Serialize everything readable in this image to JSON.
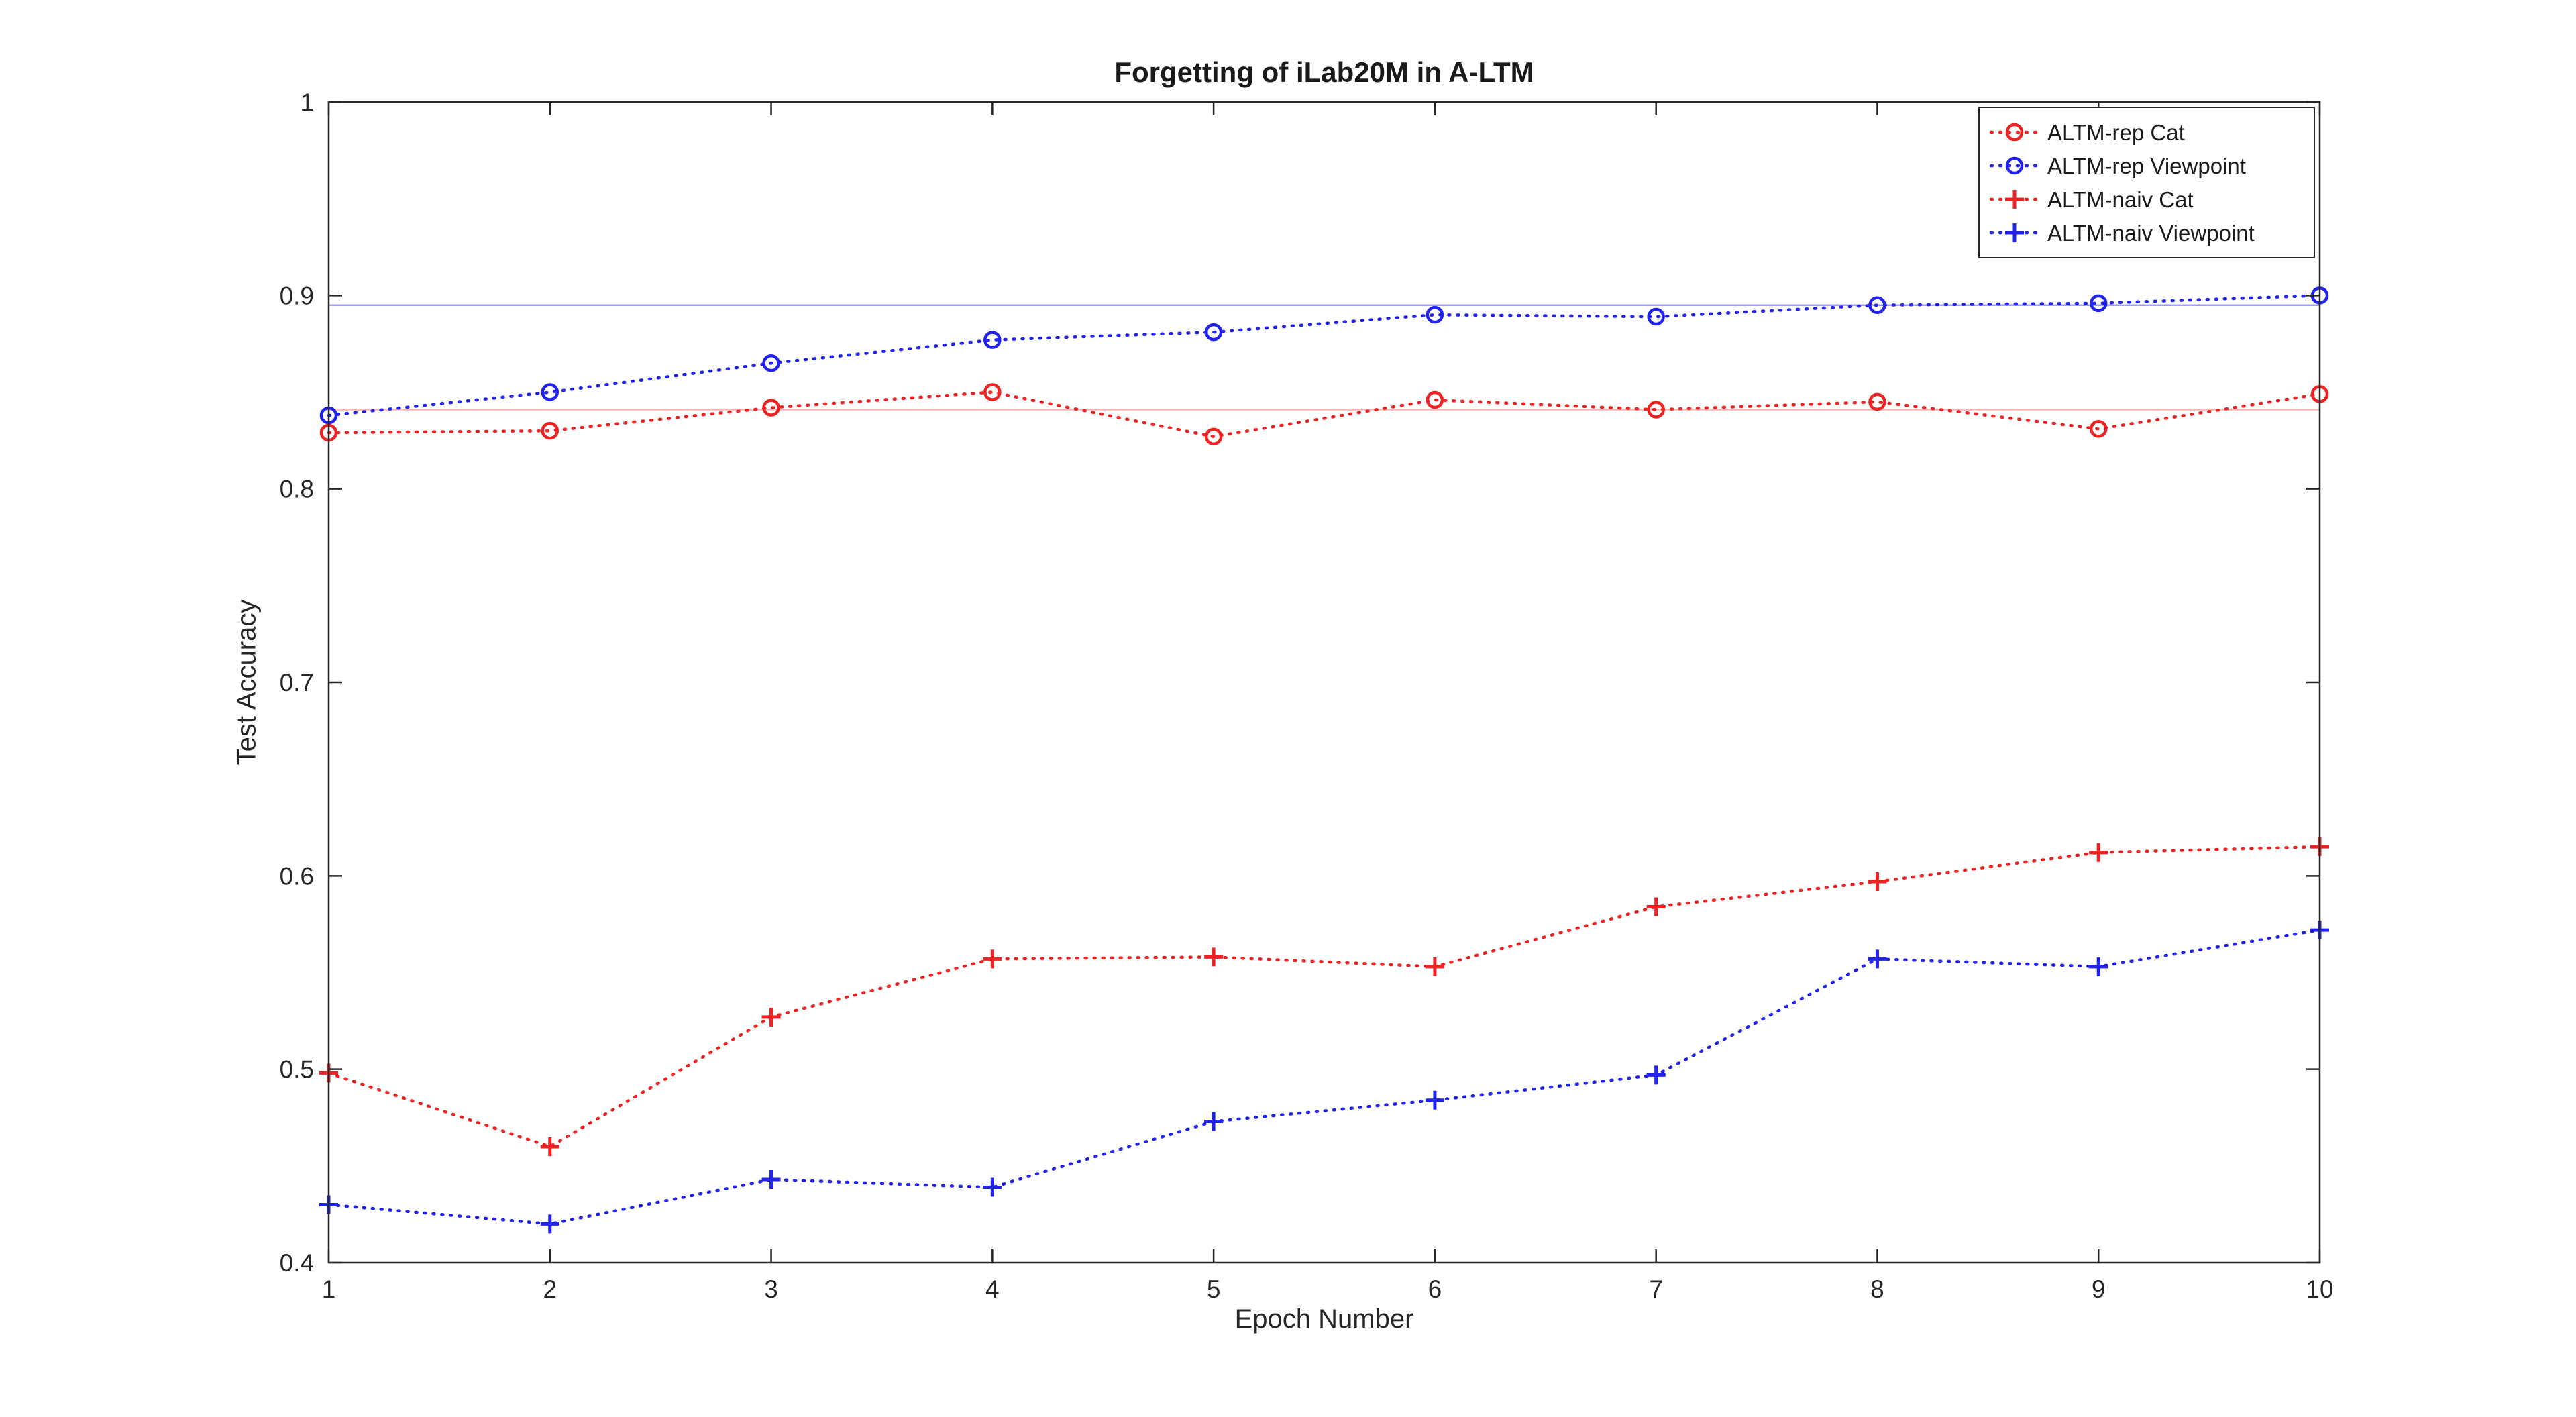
{
  "figure": {
    "title": "Forgetting of iLab20M in A-LTM",
    "xlabel": "Epoch Number",
    "ylabel": "Test Accuracy"
  },
  "chart_data": {
    "type": "line",
    "title": "Forgetting of iLab20M in A-LTM",
    "xlabel": "Epoch Number",
    "ylabel": "Test Accuracy",
    "xlim": [
      1,
      10
    ],
    "ylim": [
      0.4,
      1.0
    ],
    "grid": false,
    "legend_position": "top-right",
    "x": [
      1,
      2,
      3,
      4,
      5,
      6,
      7,
      8,
      9,
      10
    ],
    "x_tick_labels": [
      "1",
      "2",
      "3",
      "4",
      "5",
      "6",
      "7",
      "8",
      "9",
      "10"
    ],
    "y_ticks": [
      0.4,
      0.5,
      0.6,
      0.7,
      0.8,
      0.9,
      1.0
    ],
    "y_tick_labels": [
      "0.4",
      "0.5",
      "0.6",
      "0.7",
      "0.8",
      "0.9",
      "1"
    ],
    "axis_color": "#262626",
    "series": [
      {
        "name": "ALTM-rep Cat",
        "color": "#ee2222",
        "marker": "circle",
        "line_style": "dotted",
        "values": [
          0.829,
          0.83,
          0.842,
          0.85,
          0.827,
          0.846,
          0.841,
          0.845,
          0.831,
          0.849
        ]
      },
      {
        "name": "ALTM-rep Viewpoint",
        "color": "#2222ee",
        "marker": "circle",
        "line_style": "dotted",
        "values": [
          0.838,
          0.85,
          0.865,
          0.877,
          0.881,
          0.89,
          0.889,
          0.895,
          0.896,
          0.9
        ]
      },
      {
        "name": "ALTM-naiv Cat",
        "color": "#ee2222",
        "marker": "plus",
        "line_style": "dotted",
        "values": [
          0.498,
          0.46,
          0.527,
          0.557,
          0.558,
          0.553,
          0.584,
          0.597,
          0.612,
          0.615
        ]
      },
      {
        "name": "ALTM-naiv Viewpoint",
        "color": "#2222ee",
        "marker": "plus",
        "line_style": "dotted",
        "values": [
          0.43,
          0.42,
          0.443,
          0.439,
          0.473,
          0.484,
          0.497,
          0.557,
          0.553,
          0.572
        ]
      }
    ],
    "reference_lines": [
      {
        "y": 0.895,
        "color": "#a0a0f8"
      },
      {
        "y": 0.841,
        "color": "#ffb4b4"
      }
    ]
  }
}
